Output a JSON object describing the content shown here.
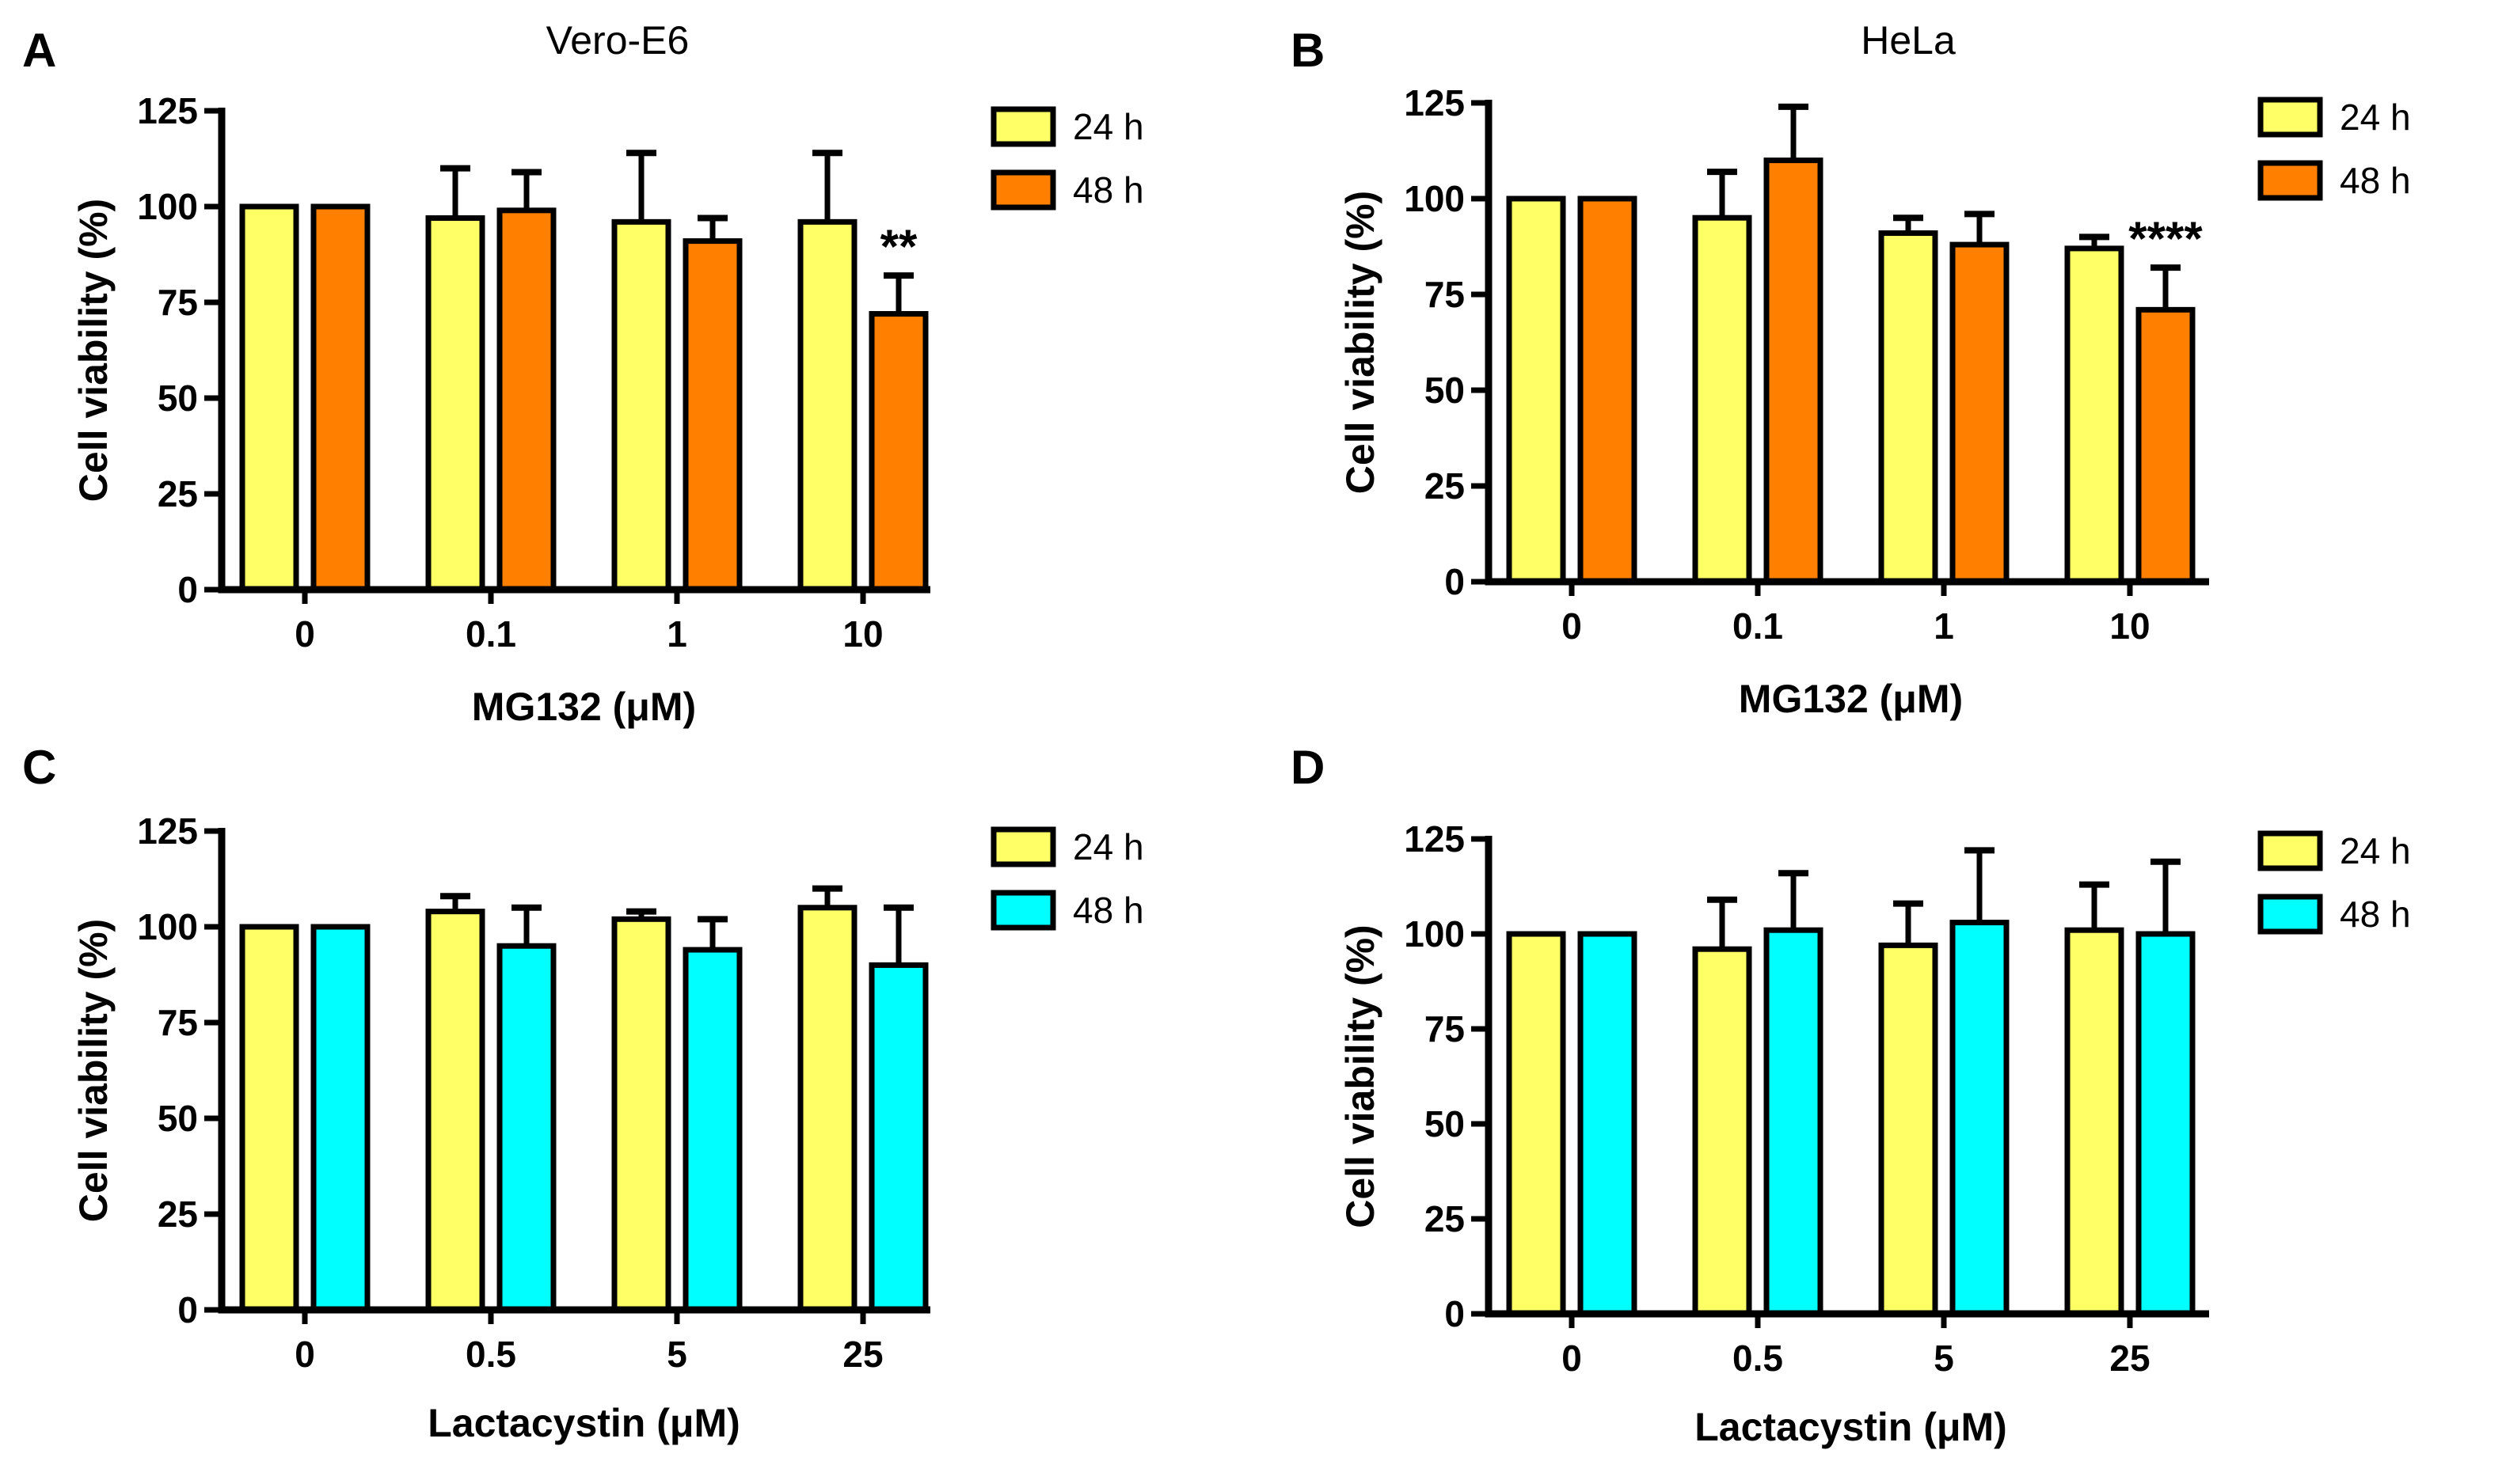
{
  "chart_data": [
    {
      "panel": "A",
      "type": "bar",
      "title": "Vero-E6",
      "xlabel": "MG132 (μM)",
      "ylabel": "Cell viability (%)",
      "ylim": [
        0,
        125
      ],
      "yticks": [
        "0",
        "25",
        "50",
        "75",
        "100",
        "125"
      ],
      "categories": [
        "0",
        "0.1",
        "1",
        "10"
      ],
      "series": [
        {
          "name": "24 h",
          "color": "#FFFF66",
          "values": [
            100,
            97,
            96,
            96
          ],
          "errors": [
            0,
            13,
            18,
            18
          ]
        },
        {
          "name": "48 h",
          "color": "#FF8000",
          "values": [
            100,
            99,
            91,
            72
          ],
          "errors": [
            0,
            10,
            6,
            10
          ]
        }
      ],
      "annotations": [
        {
          "category": "10",
          "series": "48 h",
          "text": "**"
        }
      ]
    },
    {
      "panel": "B",
      "type": "bar",
      "title": "HeLa",
      "xlabel": "MG132 (μM)",
      "ylabel": "Cell viability (%)",
      "ylim": [
        0,
        125
      ],
      "yticks": [
        "0",
        "25",
        "50",
        "75",
        "100",
        "125"
      ],
      "categories": [
        "0",
        "0.1",
        "1",
        "10"
      ],
      "series": [
        {
          "name": "24 h",
          "color": "#FFFF66",
          "values": [
            100,
            95,
            91,
            87
          ],
          "errors": [
            0,
            12,
            4,
            3
          ]
        },
        {
          "name": "48 h",
          "color": "#FF8000",
          "values": [
            100,
            110,
            88,
            71
          ],
          "errors": [
            0,
            14,
            8,
            11
          ]
        }
      ],
      "annotations": [
        {
          "category": "10",
          "series": "48 h",
          "text": "****"
        }
      ]
    },
    {
      "panel": "C",
      "type": "bar",
      "title": "",
      "xlabel": "Lactacystin (μM)",
      "ylabel": "Cell viability (%)",
      "ylim": [
        0,
        125
      ],
      "yticks": [
        "0",
        "25",
        "50",
        "75",
        "100",
        "125"
      ],
      "categories": [
        "0",
        "0.5",
        "5",
        "25"
      ],
      "series": [
        {
          "name": "24 h",
          "color": "#FFFF66",
          "values": [
            100,
            104,
            102,
            105
          ],
          "errors": [
            0,
            4,
            2,
            5
          ]
        },
        {
          "name": "48 h",
          "color": "#00FFFF",
          "values": [
            100,
            95,
            94,
            90
          ],
          "errors": [
            0,
            10,
            8,
            15
          ]
        }
      ],
      "annotations": []
    },
    {
      "panel": "D",
      "type": "bar",
      "title": "",
      "xlabel": "Lactacystin (μM)",
      "ylabel": "Cell viability (%)",
      "ylim": [
        0,
        125
      ],
      "yticks": [
        "0",
        "25",
        "50",
        "75",
        "100",
        "125"
      ],
      "categories": [
        "0",
        "0.5",
        "5",
        "25"
      ],
      "series": [
        {
          "name": "24 h",
          "color": "#FFFF66",
          "values": [
            100,
            96,
            97,
            101
          ],
          "errors": [
            0,
            13,
            11,
            12
          ]
        },
        {
          "name": "48 h",
          "color": "#00FFFF",
          "values": [
            100,
            101,
            103,
            100
          ],
          "errors": [
            0,
            15,
            19,
            19
          ]
        }
      ],
      "annotations": []
    }
  ]
}
